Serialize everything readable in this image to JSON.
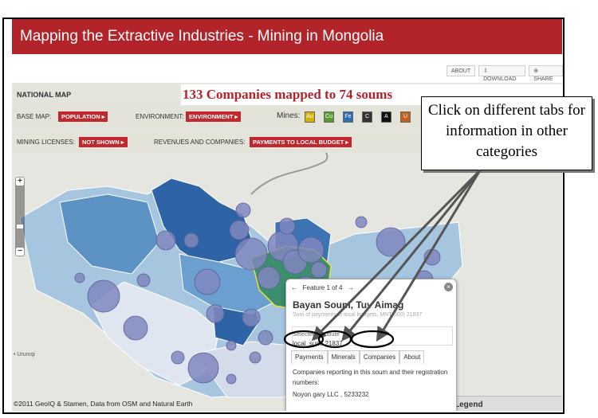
{
  "title": "Mapping the Extractive Industries - Mining in Mongolia",
  "top_buttons": [
    "ABOUT",
    "DOWNLOAD",
    "SHARE"
  ],
  "panel": {
    "national_map": "NATIONAL MAP",
    "headline": "133 Companies mapped to 74 soums",
    "base_map_label": "BASE MAP:",
    "base_map_value": "POPULATION",
    "environment_label": "ENVIRONMENT:",
    "environment_value": "ENVIRONMENT",
    "mines_label": "Mines:",
    "mine_icons": [
      {
        "name": "gold-mine-icon",
        "text": "Au",
        "color": "#d4b200"
      },
      {
        "name": "copper-mine-icon",
        "text": "Cu",
        "color": "#5a9b2e"
      },
      {
        "name": "iron-mine-icon",
        "text": "Fe",
        "color": "#2f6fb0"
      },
      {
        "name": "coal-mine-icon",
        "text": "C",
        "color": "#333333"
      },
      {
        "name": "other-mine-icon",
        "text": "A",
        "color": "#111111"
      },
      {
        "name": "uranium-mine-icon",
        "text": "U",
        "color": "#c06020"
      }
    ],
    "licenses_label": "MINING LICENSES:",
    "licenses_value": "NOT SHOWN",
    "revenues_label": "REVENUES AND COMPANIES:",
    "revenues_value": "PAYMENTS TO LOCAL BUDGET"
  },
  "zoom": {
    "plus": "+",
    "minus": "−"
  },
  "city_label": "Urumqi",
  "credit": "©2011 GeoIQ & Stamen, Data from OSM and Natural Earth",
  "popup": {
    "feature_nav": "Feature 1 of 4",
    "close": "×",
    "title": "Bayan Soum, Tuv Aimag",
    "subtitle": "Sum of payments to local budgets, MNT(000) 21837",
    "attr_label": "Selected Attribute",
    "attr_value": "local_sum: 21837",
    "tabs": [
      "Payments",
      "Minerals",
      "Companies",
      "About"
    ],
    "body": "Companies reporting in this soum and their registration numbers:",
    "company": "Noyon gary LLC , 5233232"
  },
  "legend": "Legend",
  "callout": "Click on different tabs for information in other categories",
  "colors": {
    "brand": "#b3232a",
    "dark_blue": "#2b5f9e",
    "mid_blue": "#5d93c4",
    "light_blue": "#a9c8e2",
    "bubble": "#8087bd",
    "green": "#3c8f6c"
  }
}
